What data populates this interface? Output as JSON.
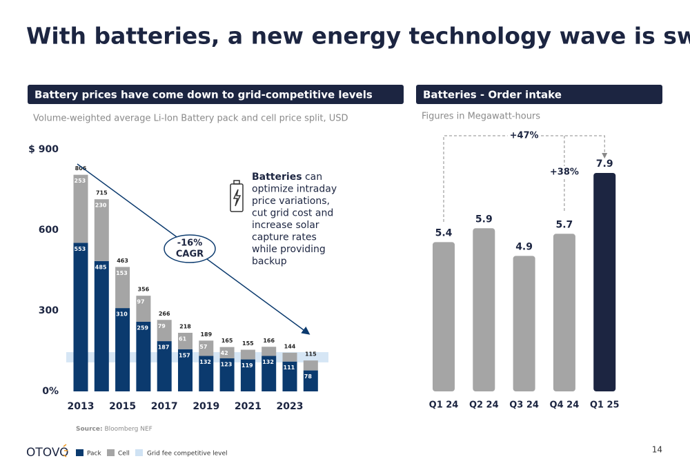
{
  "title": "With batteries, a new energy technology wave is swelling",
  "chart_data": [
    {
      "type": "bar",
      "stacked": true,
      "header": "Battery prices have come down to grid-competitive levels",
      "subtitle": "Volume-weighted average Li-Ion Battery pack and cell price split, USD",
      "categories": [
        "2013",
        null,
        "2015",
        null,
        "2017",
        null,
        "2019",
        null,
        "2021",
        null,
        "2023",
        null
      ],
      "series": [
        {
          "name": "Pack",
          "color": "#0b3a6e",
          "values": [
            553,
            485,
            310,
            259,
            187,
            157,
            132,
            123,
            119,
            132,
            111,
            78
          ]
        },
        {
          "name": "Cell",
          "color": "#a5a5a5",
          "values": [
            253,
            230,
            153,
            97,
            79,
            61,
            57,
            42,
            36,
            34,
            33,
            37
          ],
          "value_labels": [
            "253",
            "230",
            "153",
            "97",
            "79",
            "61",
            "57",
            "42",
            null,
            null,
            null,
            null
          ]
        }
      ],
      "totals": [
        806,
        715,
        463,
        356,
        266,
        218,
        189,
        165,
        155,
        166,
        144,
        115
      ],
      "band": {
        "name": "Grid fee competitive level",
        "color": "#cfe2f3",
        "range": [
          108,
          146
        ]
      },
      "ylim": [
        0,
        900
      ],
      "yticks": [
        {
          "value": 0,
          "label": "0%"
        },
        300,
        600,
        {
          "value": 900,
          "label": "$ 900"
        }
      ],
      "cagr": "-16%",
      "cagr_label": "CAGR",
      "note_bold": "Batteries",
      "note_lines": [
        "can",
        "optimize intraday",
        "price variations,",
        "cut grid cost and",
        "increase solar",
        "capture rates",
        "while providing",
        "backup"
      ],
      "source_label": "Source:",
      "source": "Bloomberg NEF"
    },
    {
      "type": "bar",
      "header": "Batteries - Order intake",
      "subtitle": "Figures in Megawatt-hours",
      "categories": [
        "Q1 24",
        "Q2 24",
        "Q3 24",
        "Q4 24",
        "Q1 25"
      ],
      "values": [
        5.4,
        5.9,
        4.9,
        5.7,
        7.9
      ],
      "colors": [
        "#a5a5a5",
        "#a5a5a5",
        "#a5a5a5",
        "#a5a5a5",
        "#1c2541"
      ],
      "annotations": [
        "+47%",
        "+38%"
      ]
    }
  ],
  "footer": {
    "logo": "OTOVO",
    "page": "14"
  }
}
